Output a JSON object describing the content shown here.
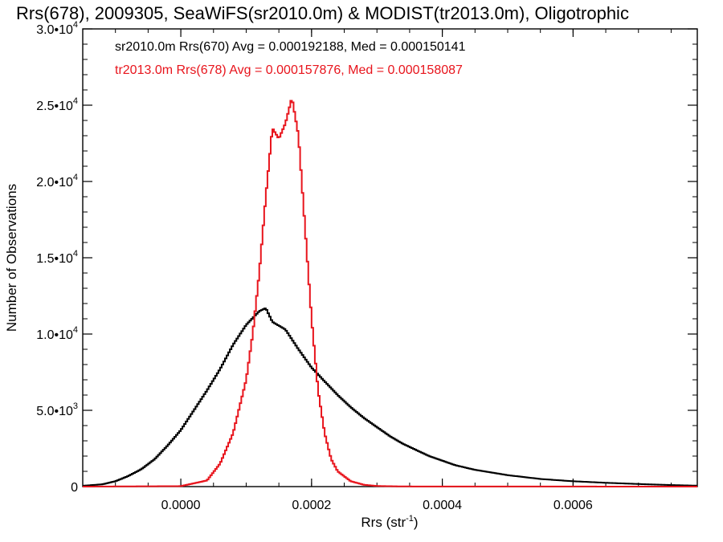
{
  "chart_data": {
    "type": "histogram",
    "title": "Rrs(678), 2009305, SeaWiFS(sr2010.0m) & MODIST(tr2013.0m), Oligotrophic",
    "xlabel": "Rrs (str",
    "xlabel_sup": "-1",
    "xlabel_close": ")",
    "ylabel": "Number of Observations",
    "xlim": [
      -0.00015,
      0.00079
    ],
    "ylim": [
      0,
      30000
    ],
    "x_ticks": [
      {
        "value": 0.0,
        "label": "0.0000"
      },
      {
        "value": 0.0002,
        "label": "0.0002"
      },
      {
        "value": 0.0004,
        "label": "0.0004"
      },
      {
        "value": 0.0006,
        "label": "0.0006"
      }
    ],
    "y_ticks": [
      {
        "value": 0,
        "label": "0",
        "exp": ""
      },
      {
        "value": 5000,
        "label": "5.0•10",
        "exp": "3"
      },
      {
        "value": 10000,
        "label": "1.0•10",
        "exp": "4"
      },
      {
        "value": 15000,
        "label": "1.5•10",
        "exp": "4"
      },
      {
        "value": 20000,
        "label": "2.0•10",
        "exp": "4"
      },
      {
        "value": 25000,
        "label": "2.5•10",
        "exp": "4"
      },
      {
        "value": 30000,
        "label": "3.0•10",
        "exp": "4"
      }
    ],
    "legend_placement": "top-left",
    "series": [
      {
        "name": "sr2010.0m Rrs(670)",
        "legend": "sr2010.0m Rrs(670) Avg = 0.000192188, Med = 0.000150141",
        "color": "#000000",
        "points": [
          [
            -0.00015,
            50
          ],
          [
            -0.00012,
            150
          ],
          [
            -0.0001,
            350
          ],
          [
            -8e-05,
            700
          ],
          [
            -6e-05,
            1150
          ],
          [
            -4e-05,
            1800
          ],
          [
            -2e-05,
            2700
          ],
          [
            0.0,
            3700
          ],
          [
            2e-05,
            5000
          ],
          [
            4e-05,
            6300
          ],
          [
            6e-05,
            7700
          ],
          [
            8e-05,
            9300
          ],
          [
            0.0001,
            10600
          ],
          [
            0.00012,
            11500
          ],
          [
            0.00013,
            11700
          ],
          [
            0.00014,
            10800
          ],
          [
            0.00016,
            10300
          ],
          [
            0.00018,
            9000
          ],
          [
            0.0002,
            7800
          ],
          [
            0.00022,
            6900
          ],
          [
            0.00024,
            6000
          ],
          [
            0.00026,
            5200
          ],
          [
            0.00028,
            4500
          ],
          [
            0.0003,
            3900
          ],
          [
            0.00032,
            3300
          ],
          [
            0.00034,
            2800
          ],
          [
            0.00036,
            2400
          ],
          [
            0.00038,
            2000
          ],
          [
            0.0004,
            1700
          ],
          [
            0.00042,
            1400
          ],
          [
            0.00045,
            1100
          ],
          [
            0.0005,
            750
          ],
          [
            0.00055,
            500
          ],
          [
            0.0006,
            350
          ],
          [
            0.00065,
            250
          ],
          [
            0.0007,
            170
          ],
          [
            0.00075,
            100
          ],
          [
            0.00079,
            60
          ]
        ]
      },
      {
        "name": "tr2013.0m Rrs(678)",
        "legend": "tr2013.0m Rrs(678) Avg = 0.000157876, Med = 0.000158087",
        "color": "#e8141c",
        "points": [
          [
            -0.00015,
            0
          ],
          [
            0.0,
            30
          ],
          [
            4e-05,
            400
          ],
          [
            6e-05,
            1500
          ],
          [
            8e-05,
            3500
          ],
          [
            0.0001,
            7000
          ],
          [
            0.00011,
            10000
          ],
          [
            0.00012,
            14000
          ],
          [
            0.00013,
            19000
          ],
          [
            0.00014,
            23500
          ],
          [
            0.00015,
            22800
          ],
          [
            0.00016,
            23800
          ],
          [
            0.00017,
            25500
          ],
          [
            0.00018,
            23000
          ],
          [
            0.00019,
            17000
          ],
          [
            0.0002,
            11000
          ],
          [
            0.00021,
            6300
          ],
          [
            0.00022,
            3500
          ],
          [
            0.00023,
            1800
          ],
          [
            0.00024,
            1000
          ],
          [
            0.00026,
            350
          ],
          [
            0.00028,
            120
          ],
          [
            0.0003,
            40
          ],
          [
            0.00034,
            10
          ],
          [
            0.00079,
            0
          ]
        ]
      }
    ]
  }
}
